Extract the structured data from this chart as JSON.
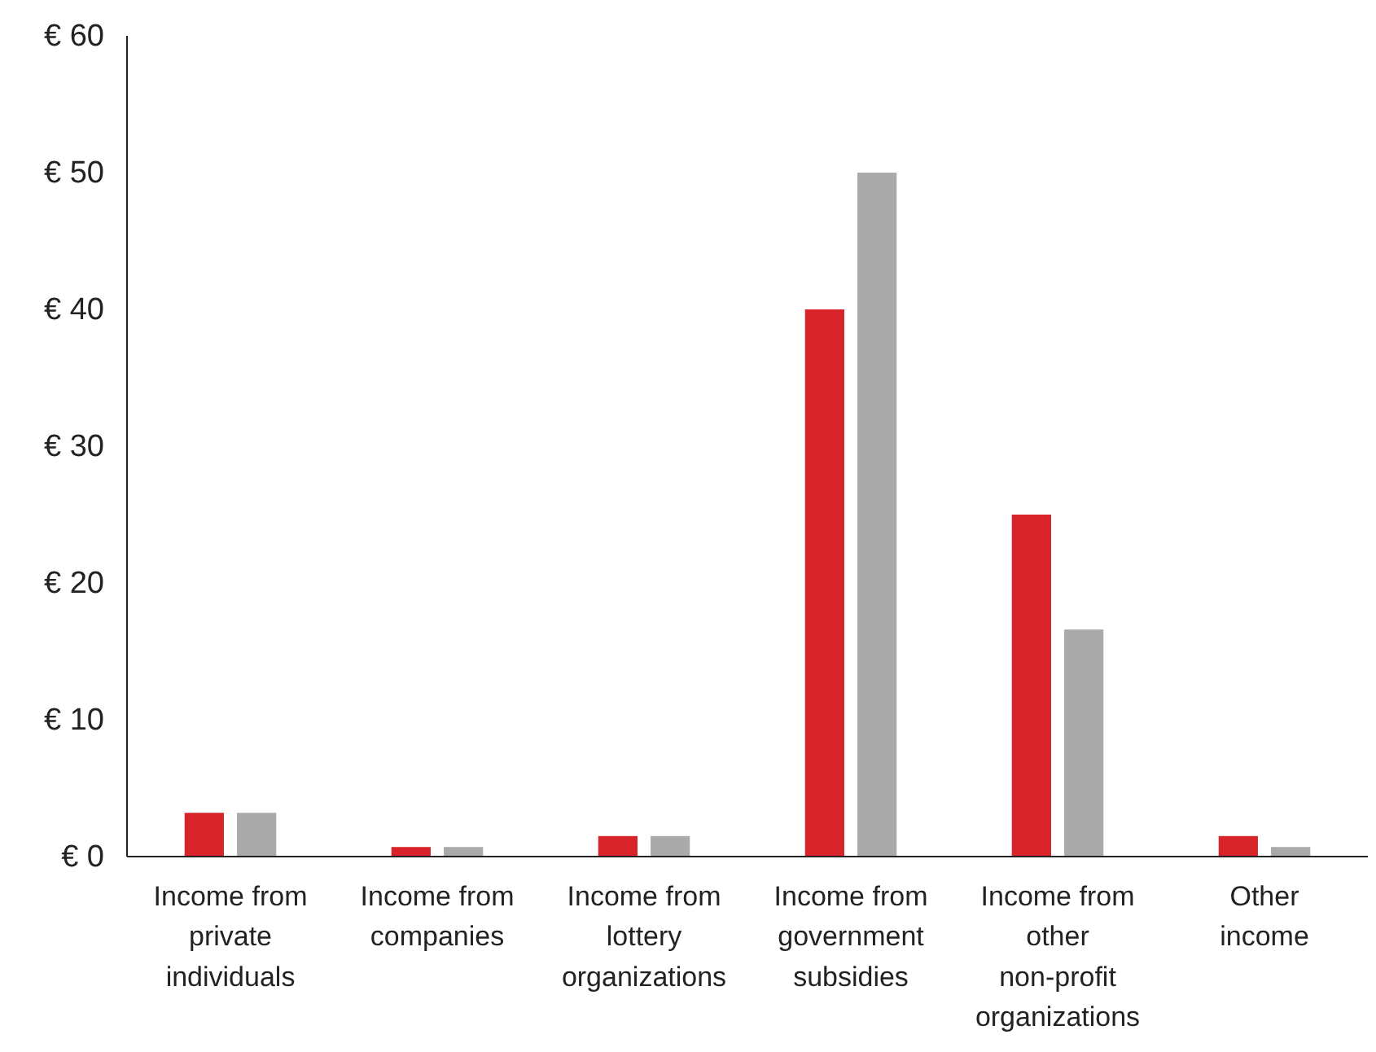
{
  "chart_data": {
    "type": "bar",
    "categories": [
      "Income from private individuals",
      "Income from companies",
      "Income from lottery organizations",
      "Income from government subsidies",
      "Income from other non-profit organizations",
      "Other income"
    ],
    "series": [
      {
        "color": "#d9232a",
        "values": [
          3.2,
          0.7,
          1.5,
          40,
          25,
          1.5
        ]
      },
      {
        "color": "#abaaaa",
        "values": [
          3.2,
          0.7,
          1.5,
          50,
          16.6,
          0.7
        ]
      }
    ],
    "ylim": [
      0,
      60
    ],
    "yticks": [
      {
        "value": 0,
        "label": "€ 0"
      },
      {
        "value": 10,
        "label": "€ 10"
      },
      {
        "value": 20,
        "label": "€ 20"
      },
      {
        "value": 30,
        "label": "€ 30"
      },
      {
        "value": 40,
        "label": "€ 40"
      },
      {
        "value": 50,
        "label": "€ 50"
      },
      {
        "value": 60,
        "label": "€ 60"
      }
    ],
    "grid": false
  }
}
